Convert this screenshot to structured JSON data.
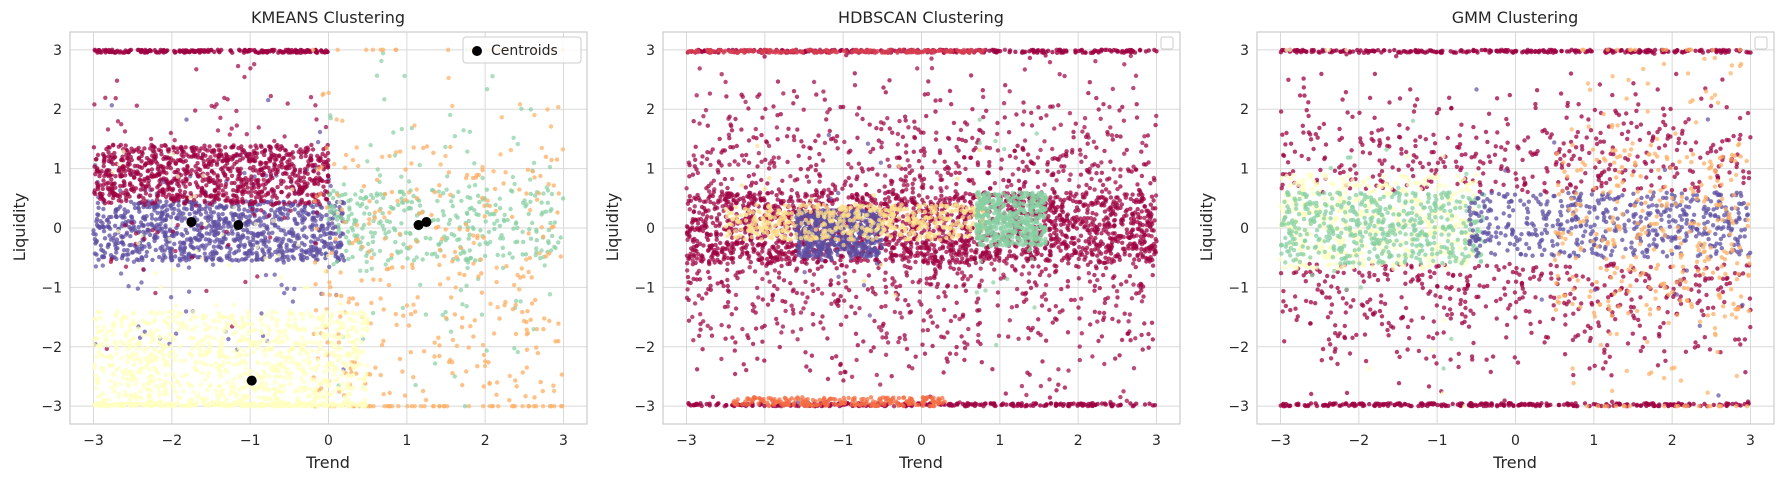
{
  "colors": {
    "crimson": "#9e0142",
    "red": "#d53e4f",
    "orange": "#f46d43",
    "light_orange": "#fdae61",
    "pale_yellow": "#fee08b",
    "cream": "#ffffbf",
    "mint": "#88d0a3",
    "purple": "#5e4fa2",
    "centroid": "#000000",
    "grid": "#d9d9d9",
    "spine": "#cccccc"
  },
  "chart_data": [
    {
      "type": "scatter",
      "title": "KMEANS Clustering",
      "xlabel": "Trend",
      "ylabel": "Liquidity",
      "xlim": [
        -3.3,
        3.3
      ],
      "ylim": [
        -3.3,
        3.3
      ],
      "xticks": [
        "−3",
        "−2",
        "−1",
        "0",
        "1",
        "2",
        "3"
      ],
      "yticks": [
        "−3",
        "−2",
        "−1",
        "0",
        "1",
        "2",
        "3"
      ],
      "grid": true,
      "legend": {
        "position": "top-right",
        "entries": [
          "Centroids"
        ]
      },
      "clusters": [
        {
          "color": "purple",
          "x": [
            -3,
            0.2
          ],
          "y_core": [
            -0.55,
            0.45
          ],
          "scatter": "sparse-wide"
        },
        {
          "color": "mint",
          "x": [
            0,
            3
          ],
          "y_core": [
            -0.55,
            0.65
          ],
          "scatter": "sparse-narrow"
        },
        {
          "color": "crimson",
          "x": [
            -3,
            0
          ],
          "y_core": [
            0.4,
            1.4
          ],
          "scatter": "upper-band"
        },
        {
          "color": "light_orange",
          "x": [
            -0.2,
            3
          ],
          "y_core": [
            -2.9,
            1.4
          ],
          "scatter": "sparse"
        },
        {
          "color": "cream",
          "x": [
            -3,
            0.5
          ],
          "y_core": [
            -2.95,
            -1.4
          ],
          "scatter": "lower-band"
        }
      ],
      "centroids": [
        {
          "x": -1.75,
          "y": 0.1
        },
        {
          "x": -1.15,
          "y": 0.05
        },
        {
          "x": 1.15,
          "y": 0.05
        },
        {
          "x": 1.25,
          "y": 0.1
        },
        {
          "x": -0.98,
          "y": -2.57
        }
      ]
    },
    {
      "type": "scatter",
      "title": "HDBSCAN Clustering",
      "xlabel": "Trend",
      "ylabel": "Liquidity",
      "xlim": [
        -3.3,
        3.3
      ],
      "ylim": [
        -3.3,
        3.3
      ],
      "xticks": [
        "−3",
        "−2",
        "−1",
        "0",
        "1",
        "2",
        "3"
      ],
      "yticks": [
        "−3",
        "−2",
        "−1",
        "0",
        "1",
        "2",
        "3"
      ],
      "grid": true,
      "legend": {
        "position": "top-right",
        "entries": []
      },
      "clusters": [
        {
          "color": "crimson",
          "x": [
            -3,
            3
          ],
          "y_core": [
            -0.6,
            0.6
          ],
          "scatter": "dominant"
        },
        {
          "color": "purple",
          "x": [
            -1.6,
            -0.5
          ],
          "y_core": [
            -0.5,
            0.3
          ],
          "scatter": "blob"
        },
        {
          "color": "pale_yellow",
          "x": [
            -2.5,
            0.8
          ],
          "y_core": [
            -0.2,
            0.4
          ],
          "scatter": "blob"
        },
        {
          "color": "mint",
          "x": [
            0.7,
            1.6
          ],
          "y_core": [
            -0.3,
            0.6
          ],
          "scatter": "blob"
        },
        {
          "color": "orange",
          "x": [
            -2.4,
            0.3
          ],
          "y_core": [
            -3,
            -2.85
          ],
          "scatter": "edge-band"
        },
        {
          "color": "red",
          "x": [
            -3,
            0.8
          ],
          "y_core": [
            2.95,
            3
          ],
          "scatter": "edge-band"
        }
      ]
    },
    {
      "type": "scatter",
      "title": "GMM Clustering",
      "xlabel": "Trend",
      "ylabel": "Liquidity",
      "xlim": [
        -3.3,
        3.3
      ],
      "ylim": [
        -3.3,
        3.3
      ],
      "xticks": [
        "−3",
        "−2",
        "−1",
        "0",
        "1",
        "2",
        "3"
      ],
      "yticks": [
        "−3",
        "−2",
        "−1",
        "0",
        "1",
        "2",
        "3"
      ],
      "grid": true,
      "legend": {
        "position": "top-right",
        "entries": []
      },
      "clusters": [
        {
          "color": "crimson",
          "x": [
            -3,
            3
          ],
          "y_core": [
            -3,
            3
          ],
          "scatter": "outer"
        },
        {
          "color": "cream",
          "x": [
            -3,
            -0.5
          ],
          "y_core": [
            -0.7,
            0.9
          ],
          "scatter": "blob"
        },
        {
          "color": "mint",
          "x": [
            -3,
            -0.4
          ],
          "y_core": [
            -0.6,
            0.6
          ],
          "scatter": "blob"
        },
        {
          "color": "purple",
          "x": [
            -0.6,
            3
          ],
          "y_core": [
            -0.5,
            0.6
          ],
          "scatter": "blob"
        },
        {
          "color": "light_orange",
          "x": [
            0.5,
            3
          ],
          "y_core": [
            -1.5,
            1.4
          ],
          "scatter": "sparse"
        }
      ]
    }
  ]
}
